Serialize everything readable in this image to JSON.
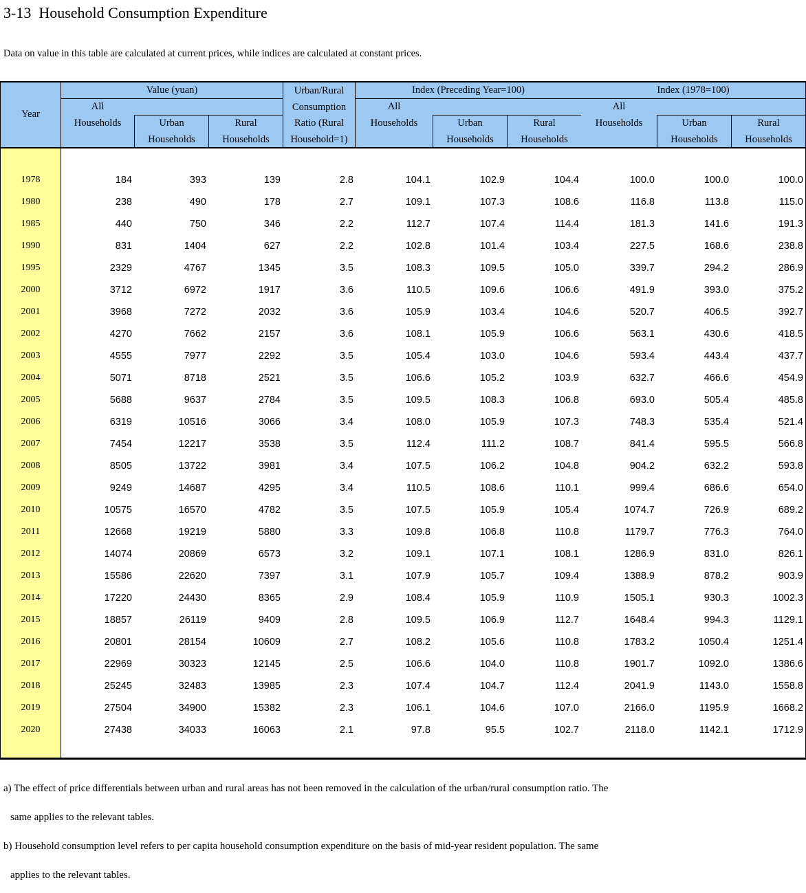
{
  "page": {
    "title": "3-13  Household Consumption Expenditure",
    "note": "Data on value in this table are calculated at current prices, while indices are calculated at constant prices."
  },
  "colors": {
    "header_bg": "#9CC9F2",
    "year_bg": "#FFFF99",
    "border": "#000000"
  },
  "table": {
    "header": {
      "year_label": "Year",
      "value_group_label": "Value (yuan)",
      "index_preceding_group_label": "Index (Preceding Year=100)",
      "index_1978_group_label": "Index (1978=100)",
      "ratio_lines": [
        "Urban/Rural",
        "Consumption",
        "Ratio (Rural",
        "Household=1)"
      ],
      "sub": {
        "all": "All",
        "urban": "Urban",
        "rural": "Rural",
        "households": "Households"
      }
    },
    "columns": [
      "Year",
      "Value All Households",
      "Value Urban Households",
      "Value Rural Households",
      "Urban/Rural Consumption Ratio (Rural Household=1)",
      "Index Preceding Year All Households",
      "Index Preceding Year Urban Households",
      "Index Preceding Year Rural Households",
      "Index 1978 All Households",
      "Index 1978 Urban Households",
      "Index 1978 Rural Households"
    ],
    "rows": [
      [
        "1978",
        "184",
        "393",
        "139",
        "2.8",
        "104.1",
        "102.9",
        "104.4",
        "100.0",
        "100.0",
        "100.0"
      ],
      [
        "1980",
        "238",
        "490",
        "178",
        "2.7",
        "109.1",
        "107.3",
        "108.6",
        "116.8",
        "113.8",
        "115.0"
      ],
      [
        "1985",
        "440",
        "750",
        "346",
        "2.2",
        "112.7",
        "107.4",
        "114.4",
        "181.3",
        "141.6",
        "191.3"
      ],
      [
        "1990",
        "831",
        "1404",
        "627",
        "2.2",
        "102.8",
        "101.4",
        "103.4",
        "227.5",
        "168.6",
        "238.8"
      ],
      [
        "1995",
        "2329",
        "4767",
        "1345",
        "3.5",
        "108.3",
        "109.5",
        "105.0",
        "339.7",
        "294.2",
        "286.9"
      ],
      [
        "2000",
        "3712",
        "6972",
        "1917",
        "3.6",
        "110.5",
        "109.6",
        "106.6",
        "491.9",
        "393.0",
        "375.2"
      ],
      [
        "2001",
        "3968",
        "7272",
        "2032",
        "3.6",
        "105.9",
        "103.4",
        "104.6",
        "520.7",
        "406.5",
        "392.7"
      ],
      [
        "2002",
        "4270",
        "7662",
        "2157",
        "3.6",
        "108.1",
        "105.9",
        "106.6",
        "563.1",
        "430.6",
        "418.5"
      ],
      [
        "2003",
        "4555",
        "7977",
        "2292",
        "3.5",
        "105.4",
        "103.0",
        "104.6",
        "593.4",
        "443.4",
        "437.7"
      ],
      [
        "2004",
        "5071",
        "8718",
        "2521",
        "3.5",
        "106.6",
        "105.2",
        "103.9",
        "632.7",
        "466.6",
        "454.9"
      ],
      [
        "2005",
        "5688",
        "9637",
        "2784",
        "3.5",
        "109.5",
        "108.3",
        "106.8",
        "693.0",
        "505.4",
        "485.8"
      ],
      [
        "2006",
        "6319",
        "10516",
        "3066",
        "3.4",
        "108.0",
        "105.9",
        "107.3",
        "748.3",
        "535.4",
        "521.4"
      ],
      [
        "2007",
        "7454",
        "12217",
        "3538",
        "3.5",
        "112.4",
        "111.2",
        "108.7",
        "841.4",
        "595.5",
        "566.8"
      ],
      [
        "2008",
        "8505",
        "13722",
        "3981",
        "3.4",
        "107.5",
        "106.2",
        "104.8",
        "904.2",
        "632.2",
        "593.8"
      ],
      [
        "2009",
        "9249",
        "14687",
        "4295",
        "3.4",
        "110.5",
        "108.6",
        "110.1",
        "999.4",
        "686.6",
        "654.0"
      ],
      [
        "2010",
        "10575",
        "16570",
        "4782",
        "3.5",
        "107.5",
        "105.9",
        "105.4",
        "1074.7",
        "726.9",
        "689.2"
      ],
      [
        "2011",
        "12668",
        "19219",
        "5880",
        "3.3",
        "109.8",
        "106.8",
        "110.8",
        "1179.7",
        "776.3",
        "764.0"
      ],
      [
        "2012",
        "14074",
        "20869",
        "6573",
        "3.2",
        "109.1",
        "107.1",
        "108.1",
        "1286.9",
        "831.0",
        "826.1"
      ],
      [
        "2013",
        "15586",
        "22620",
        "7397",
        "3.1",
        "107.9",
        "105.7",
        "109.4",
        "1388.9",
        "878.2",
        "903.9"
      ],
      [
        "2014",
        "17220",
        "24430",
        "8365",
        "2.9",
        "108.4",
        "105.9",
        "110.9",
        "1505.1",
        "930.3",
        "1002.3"
      ],
      [
        "2015",
        "18857",
        "26119",
        "9409",
        "2.8",
        "109.5",
        "106.9",
        "112.7",
        "1648.4",
        "994.3",
        "1129.1"
      ],
      [
        "2016",
        "20801",
        "28154",
        "10609",
        "2.7",
        "108.2",
        "105.6",
        "110.8",
        "1783.2",
        "1050.4",
        "1251.4"
      ],
      [
        "2017",
        "22969",
        "30323",
        "12145",
        "2.5",
        "106.6",
        "104.0",
        "110.8",
        "1901.7",
        "1092.0",
        "1386.6"
      ],
      [
        "2018",
        "25245",
        "32483",
        "13985",
        "2.3",
        "107.4",
        "104.7",
        "112.4",
        "2041.9",
        "1143.0",
        "1558.8"
      ],
      [
        "2019",
        "27504",
        "34900",
        "15382",
        "2.3",
        "106.1",
        "104.6",
        "107.0",
        "2166.0",
        "1195.9",
        "1668.2"
      ],
      [
        "2020",
        "27438",
        "34033",
        "16063",
        "2.1",
        "97.8",
        "95.5",
        "102.7",
        "2118.0",
        "1142.1",
        "1712.9"
      ]
    ]
  },
  "footnotes": [
    {
      "line1": "a) The effect of price differentials between urban and rural areas has not been removed in the calculation of the urban/rural consumption ratio. The",
      "line2": "same applies to the relevant tables."
    },
    {
      "line1": "b) Household consumption level refers to per capita household consumption expenditure on the basis of mid-year resident population. The same",
      "line2": "applies to the relevant tables."
    }
  ]
}
